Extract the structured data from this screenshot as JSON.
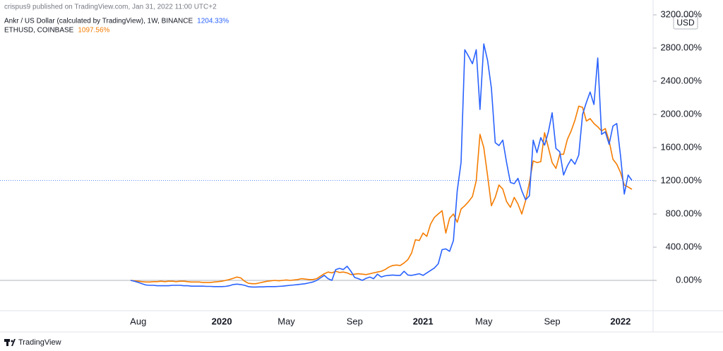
{
  "header": "crispus9 published on TradingView.com, Jan 31, 2022 11:00 UTC+2",
  "currency": "USD",
  "brand": "TradingView",
  "chart_data": {
    "type": "line",
    "categories": [
      null,
      null,
      "Aug",
      null,
      null,
      null,
      null,
      null,
      null,
      null,
      null,
      null,
      null,
      null,
      null,
      null,
      null,
      null,
      null,
      null,
      null,
      null,
      null,
      null,
      "2020",
      null,
      null,
      null,
      null,
      null,
      null,
      null,
      null,
      null,
      null,
      null,
      null,
      null,
      null,
      null,
      null,
      "May",
      null,
      null,
      null,
      null,
      null,
      null,
      null,
      null,
      null,
      null,
      null,
      null,
      null,
      null,
      null,
      null,
      null,
      "Sep",
      null,
      null,
      null,
      null,
      null,
      null,
      null,
      null,
      null,
      null,
      null,
      null,
      null,
      null,
      null,
      null,
      null,
      "2021",
      null,
      null,
      null,
      null,
      null,
      null,
      null,
      null,
      null,
      null,
      null,
      null,
      null,
      null,
      null,
      "May",
      null,
      null,
      null,
      null,
      null,
      null,
      null,
      null,
      null,
      null,
      null,
      null,
      null,
      null,
      null,
      null,
      null,
      "Sep",
      null,
      null,
      null,
      null,
      null,
      null,
      null,
      null,
      null,
      null,
      null,
      null,
      null,
      null,
      null,
      null,
      null,
      "2022",
      null,
      null,
      null
    ],
    "series": [
      {
        "name": "Ankr / US Dollar (calculated by TradingView), 1W, BINANCE",
        "color": "#2962ff",
        "value_label": "1204.33%",
        "values": [
          0,
          -10,
          -25,
          -40,
          -55,
          -60,
          -60,
          -65,
          -65,
          -65,
          -65,
          -60,
          -60,
          -60,
          -65,
          -65,
          -70,
          -70,
          -70,
          -70,
          -72,
          -72,
          -75,
          -75,
          -75,
          -72,
          -65,
          -50,
          -45,
          -50,
          -60,
          -75,
          -80,
          -80,
          -78,
          -78,
          -75,
          -75,
          -75,
          -72,
          -70,
          -65,
          -60,
          -55,
          -50,
          -45,
          -40,
          -30,
          -20,
          0,
          30,
          60,
          20,
          0,
          130,
          145,
          130,
          170,
          110,
          35,
          20,
          0,
          25,
          40,
          20,
          75,
          40,
          55,
          60,
          65,
          60,
          60,
          110,
          65,
          60,
          70,
          80,
          60,
          90,
          120,
          150,
          200,
          370,
          380,
          350,
          480,
          1080,
          1420,
          2780,
          2700,
          2610,
          2780,
          2060,
          2850,
          2650,
          2315,
          1660,
          1625,
          1690,
          1420,
          1180,
          1165,
          1230,
          1080,
          970,
          1020,
          1690,
          1540,
          1720,
          1630,
          1790,
          2020,
          1590,
          1550,
          1270,
          1380,
          1460,
          1400,
          1510,
          2000,
          2145,
          2270,
          2120,
          2680,
          1760,
          1790,
          1640,
          1860,
          1890,
          1500,
          1040,
          1270,
          1204.33
        ]
      },
      {
        "name": "ETHUSD, COINBASE",
        "color": "#f57c00",
        "value_label": "1097.56%",
        "values": [
          0,
          -5,
          -10,
          -15,
          -20,
          -20,
          -15,
          -15,
          -10,
          -15,
          -10,
          -10,
          -15,
          -10,
          -10,
          -15,
          -20,
          -20,
          -20,
          -25,
          -25,
          -25,
          -20,
          -15,
          -10,
          0,
          10,
          25,
          40,
          30,
          -10,
          -35,
          -40,
          -40,
          -30,
          -20,
          -10,
          -5,
          0,
          -5,
          0,
          5,
          0,
          5,
          10,
          20,
          15,
          10,
          10,
          20,
          50,
          80,
          100,
          90,
          110,
          95,
          100,
          90,
          70,
          75,
          80,
          75,
          70,
          80,
          90,
          100,
          110,
          130,
          160,
          180,
          185,
          180,
          210,
          250,
          330,
          490,
          480,
          570,
          530,
          680,
          760,
          800,
          840,
          570,
          750,
          800,
          700,
          860,
          900,
          950,
          1010,
          1200,
          1760,
          1600,
          1260,
          900,
          1000,
          1150,
          1100,
          950,
          880,
          1000,
          920,
          800,
          960,
          1180,
          1440,
          1420,
          1430,
          1780,
          1600,
          1420,
          1350,
          1520,
          1520,
          1700,
          1800,
          1930,
          2100,
          2085,
          1920,
          1950,
          1890,
          1850,
          1800,
          1830,
          1680,
          1460,
          1400,
          1300,
          1150,
          1125,
          1097.56
        ]
      }
    ],
    "ylim": [
      -366,
      3379
    ],
    "yticks": [
      {
        "value": 0,
        "label": "0.00%"
      },
      {
        "value": 400,
        "label": "400.00%"
      },
      {
        "value": 800,
        "label": "800.00%"
      },
      {
        "value": 1200,
        "label": "1200.00%"
      },
      {
        "value": 1600,
        "label": "1600.00%"
      },
      {
        "value": 2000,
        "label": "2000.00%"
      },
      {
        "value": 2400,
        "label": "2400.00%"
      },
      {
        "value": 2800,
        "label": "2800.00%"
      },
      {
        "value": 3200,
        "label": "3200.00%"
      }
    ],
    "grid": false
  }
}
